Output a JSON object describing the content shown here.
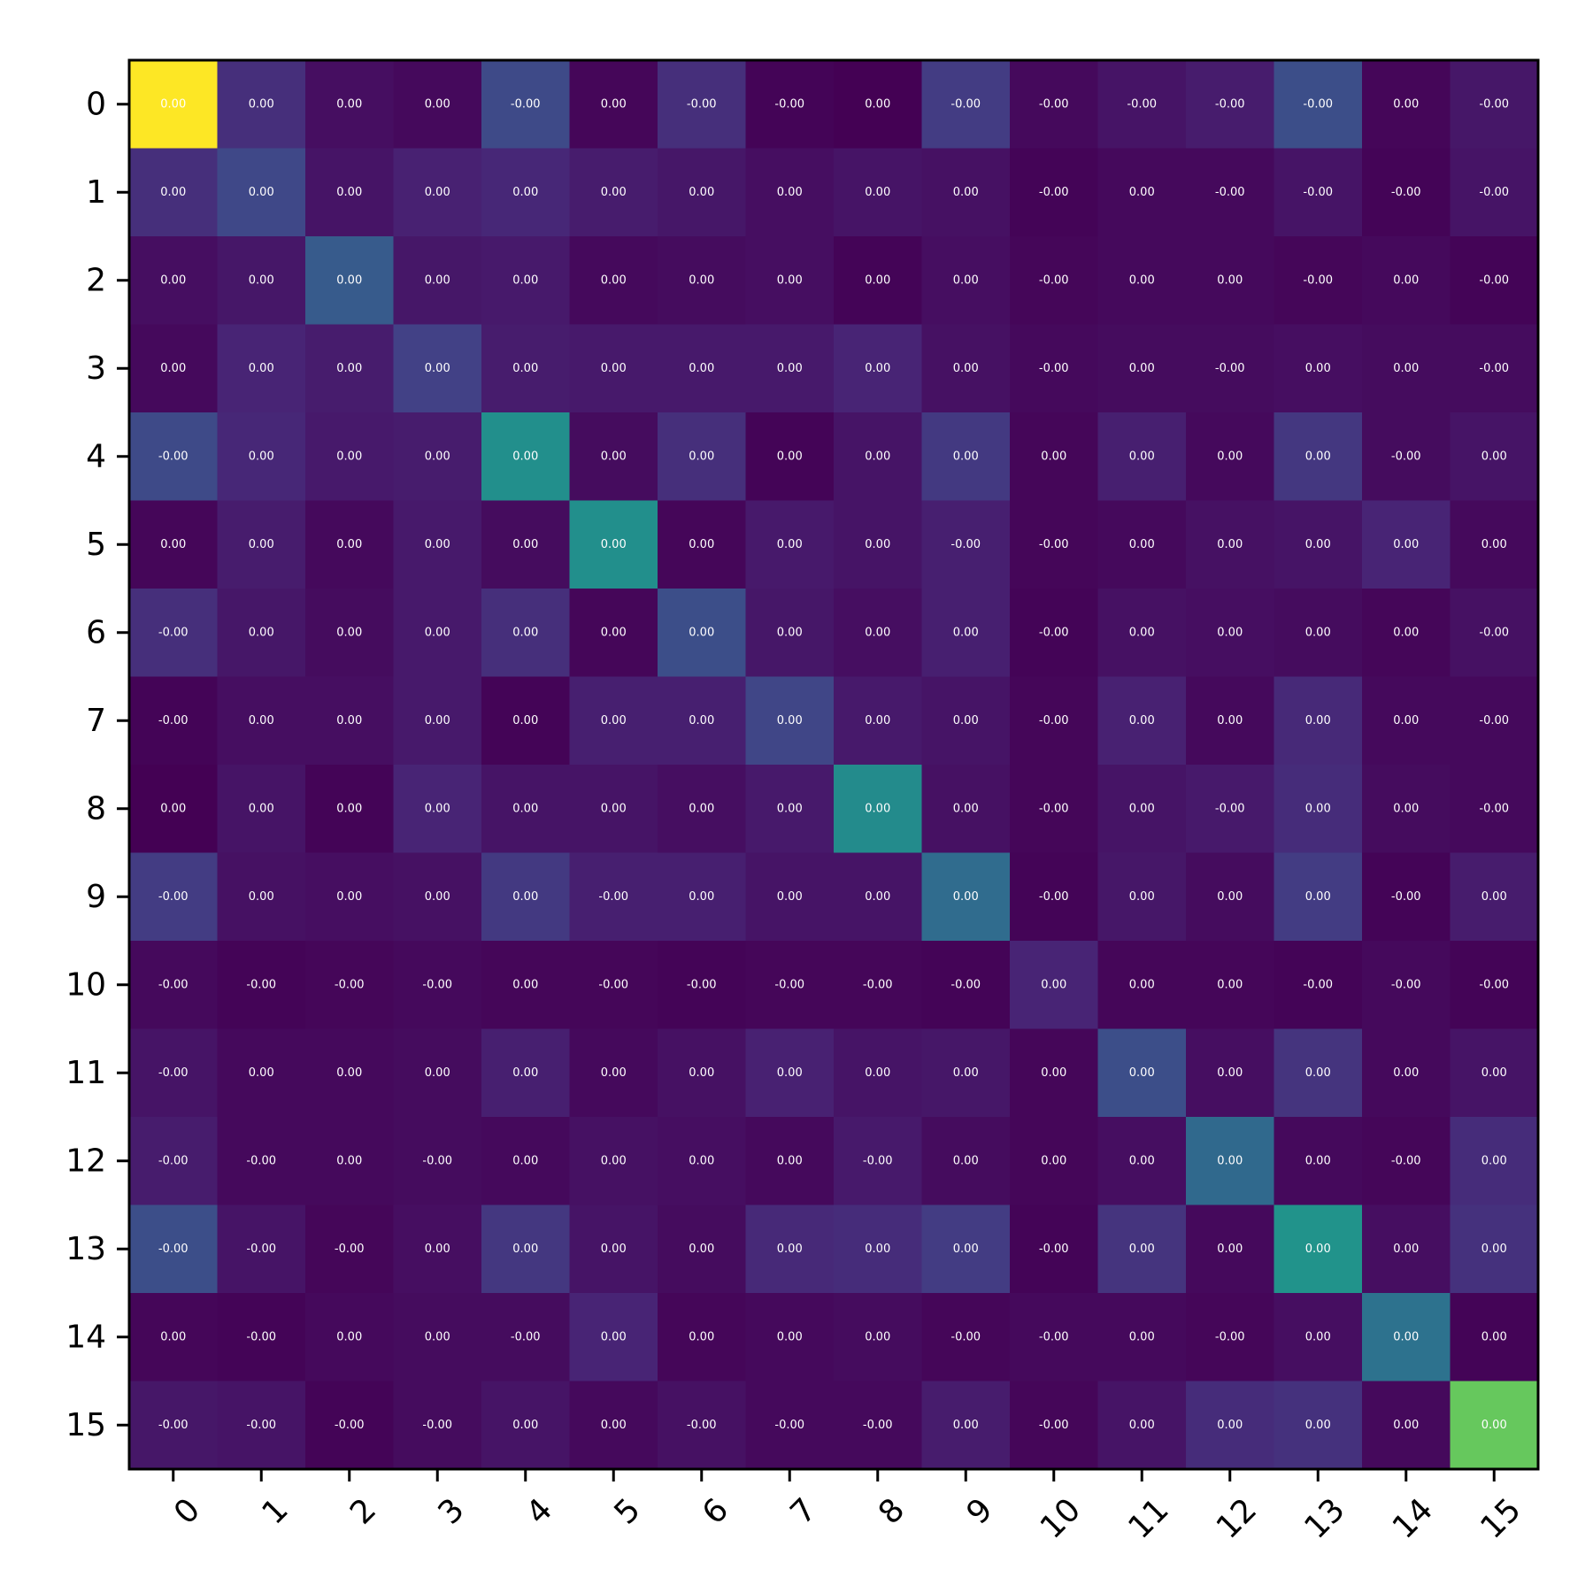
{
  "chart_data": {
    "type": "heatmap",
    "title": "",
    "xlabel": "",
    "ylabel": "",
    "colormap": "viridis",
    "x_categories": [
      "0",
      "1",
      "2",
      "3",
      "4",
      "5",
      "6",
      "7",
      "8",
      "9",
      "10",
      "11",
      "12",
      "13",
      "14",
      "15"
    ],
    "y_categories": [
      "0",
      "1",
      "2",
      "3",
      "4",
      "5",
      "6",
      "7",
      "8",
      "9",
      "10",
      "11",
      "12",
      "13",
      "14",
      "15"
    ],
    "intensity": [
      [
        1.0,
        0.17,
        0.05,
        0.03,
        0.28,
        0.02,
        0.17,
        0.01,
        0.0,
        0.22,
        0.03,
        0.07,
        0.1,
        0.3,
        0.02,
        0.08
      ],
      [
        0.17,
        0.27,
        0.07,
        0.12,
        0.14,
        0.1,
        0.08,
        0.05,
        0.07,
        0.06,
        0.01,
        0.03,
        0.03,
        0.07,
        0.01,
        0.07
      ],
      [
        0.05,
        0.08,
        0.36,
        0.08,
        0.09,
        0.03,
        0.04,
        0.05,
        0.01,
        0.05,
        0.02,
        0.03,
        0.03,
        0.02,
        0.03,
        0.01
      ],
      [
        0.03,
        0.13,
        0.1,
        0.24,
        0.1,
        0.09,
        0.09,
        0.09,
        0.13,
        0.06,
        0.03,
        0.04,
        0.04,
        0.05,
        0.04,
        0.04
      ],
      [
        0.28,
        0.14,
        0.09,
        0.1,
        0.62,
        0.04,
        0.17,
        0.01,
        0.07,
        0.21,
        0.02,
        0.11,
        0.03,
        0.2,
        0.04,
        0.07
      ],
      [
        0.02,
        0.1,
        0.03,
        0.09,
        0.04,
        0.62,
        0.02,
        0.09,
        0.07,
        0.11,
        0.02,
        0.03,
        0.06,
        0.07,
        0.13,
        0.03
      ],
      [
        0.17,
        0.08,
        0.04,
        0.09,
        0.17,
        0.02,
        0.3,
        0.08,
        0.05,
        0.11,
        0.01,
        0.06,
        0.05,
        0.04,
        0.02,
        0.06
      ],
      [
        0.01,
        0.05,
        0.05,
        0.09,
        0.01,
        0.11,
        0.11,
        0.26,
        0.09,
        0.07,
        0.02,
        0.12,
        0.03,
        0.15,
        0.03,
        0.03
      ],
      [
        0.0,
        0.07,
        0.01,
        0.13,
        0.07,
        0.07,
        0.05,
        0.09,
        0.6,
        0.06,
        0.02,
        0.07,
        0.09,
        0.16,
        0.04,
        0.03
      ],
      [
        0.22,
        0.06,
        0.05,
        0.06,
        0.21,
        0.11,
        0.11,
        0.07,
        0.07,
        0.44,
        0.01,
        0.08,
        0.04,
        0.22,
        0.01,
        0.1
      ],
      [
        0.03,
        0.01,
        0.02,
        0.03,
        0.02,
        0.02,
        0.01,
        0.02,
        0.02,
        0.01,
        0.13,
        0.02,
        0.02,
        0.01,
        0.03,
        0.01
      ],
      [
        0.07,
        0.03,
        0.03,
        0.04,
        0.11,
        0.03,
        0.06,
        0.12,
        0.07,
        0.08,
        0.02,
        0.3,
        0.05,
        0.19,
        0.03,
        0.07
      ],
      [
        0.1,
        0.03,
        0.03,
        0.04,
        0.03,
        0.06,
        0.05,
        0.03,
        0.09,
        0.04,
        0.02,
        0.05,
        0.43,
        0.03,
        0.02,
        0.16
      ],
      [
        0.3,
        0.07,
        0.02,
        0.05,
        0.2,
        0.07,
        0.04,
        0.15,
        0.16,
        0.22,
        0.01,
        0.19,
        0.03,
        0.64,
        0.05,
        0.18
      ],
      [
        0.02,
        0.01,
        0.03,
        0.04,
        0.04,
        0.13,
        0.02,
        0.03,
        0.04,
        0.02,
        0.03,
        0.03,
        0.02,
        0.05,
        0.47,
        0.01
      ],
      [
        0.08,
        0.07,
        0.01,
        0.04,
        0.07,
        0.03,
        0.06,
        0.03,
        0.03,
        0.1,
        0.02,
        0.07,
        0.16,
        0.18,
        0.03,
        0.85
      ]
    ],
    "labels": [
      [
        "0.00",
        "0.00",
        "0.00",
        "0.00",
        "-0.00",
        "0.00",
        "-0.00",
        "-0.00",
        "0.00",
        "-0.00",
        "-0.00",
        "-0.00",
        "-0.00",
        "-0.00",
        "0.00",
        "-0.00"
      ],
      [
        "0.00",
        "0.00",
        "0.00",
        "0.00",
        "0.00",
        "0.00",
        "0.00",
        "0.00",
        "0.00",
        "0.00",
        "-0.00",
        "0.00",
        "-0.00",
        "-0.00",
        "-0.00",
        "-0.00"
      ],
      [
        "0.00",
        "0.00",
        "0.00",
        "0.00",
        "0.00",
        "0.00",
        "0.00",
        "0.00",
        "0.00",
        "0.00",
        "-0.00",
        "0.00",
        "0.00",
        "-0.00",
        "0.00",
        "-0.00"
      ],
      [
        "0.00",
        "0.00",
        "0.00",
        "0.00",
        "0.00",
        "0.00",
        "0.00",
        "0.00",
        "0.00",
        "0.00",
        "-0.00",
        "0.00",
        "-0.00",
        "0.00",
        "0.00",
        "-0.00"
      ],
      [
        "-0.00",
        "0.00",
        "0.00",
        "0.00",
        "0.00",
        "0.00",
        "0.00",
        "0.00",
        "0.00",
        "0.00",
        "0.00",
        "0.00",
        "0.00",
        "0.00",
        "-0.00",
        "0.00"
      ],
      [
        "0.00",
        "0.00",
        "0.00",
        "0.00",
        "0.00",
        "0.00",
        "0.00",
        "0.00",
        "0.00",
        "-0.00",
        "-0.00",
        "0.00",
        "0.00",
        "0.00",
        "0.00",
        "0.00"
      ],
      [
        "-0.00",
        "0.00",
        "0.00",
        "0.00",
        "0.00",
        "0.00",
        "0.00",
        "0.00",
        "0.00",
        "0.00",
        "-0.00",
        "0.00",
        "0.00",
        "0.00",
        "0.00",
        "-0.00"
      ],
      [
        "-0.00",
        "0.00",
        "0.00",
        "0.00",
        "0.00",
        "0.00",
        "0.00",
        "0.00",
        "0.00",
        "0.00",
        "-0.00",
        "0.00",
        "0.00",
        "0.00",
        "0.00",
        "-0.00"
      ],
      [
        "0.00",
        "0.00",
        "0.00",
        "0.00",
        "0.00",
        "0.00",
        "0.00",
        "0.00",
        "0.00",
        "0.00",
        "-0.00",
        "0.00",
        "-0.00",
        "0.00",
        "0.00",
        "-0.00"
      ],
      [
        "-0.00",
        "0.00",
        "0.00",
        "0.00",
        "0.00",
        "-0.00",
        "0.00",
        "0.00",
        "0.00",
        "0.00",
        "-0.00",
        "0.00",
        "0.00",
        "0.00",
        "-0.00",
        "0.00"
      ],
      [
        "-0.00",
        "-0.00",
        "-0.00",
        "-0.00",
        "0.00",
        "-0.00",
        "-0.00",
        "-0.00",
        "-0.00",
        "-0.00",
        "0.00",
        "0.00",
        "0.00",
        "-0.00",
        "-0.00",
        "-0.00"
      ],
      [
        "-0.00",
        "0.00",
        "0.00",
        "0.00",
        "0.00",
        "0.00",
        "0.00",
        "0.00",
        "0.00",
        "0.00",
        "0.00",
        "0.00",
        "0.00",
        "0.00",
        "0.00",
        "0.00"
      ],
      [
        "-0.00",
        "-0.00",
        "0.00",
        "-0.00",
        "0.00",
        "0.00",
        "0.00",
        "0.00",
        "-0.00",
        "0.00",
        "0.00",
        "0.00",
        "0.00",
        "0.00",
        "-0.00",
        "0.00"
      ],
      [
        "-0.00",
        "-0.00",
        "-0.00",
        "0.00",
        "0.00",
        "0.00",
        "0.00",
        "0.00",
        "0.00",
        "0.00",
        "-0.00",
        "0.00",
        "0.00",
        "0.00",
        "0.00",
        "0.00"
      ],
      [
        "0.00",
        "-0.00",
        "0.00",
        "0.00",
        "-0.00",
        "0.00",
        "0.00",
        "0.00",
        "0.00",
        "-0.00",
        "-0.00",
        "0.00",
        "-0.00",
        "0.00",
        "0.00",
        "0.00"
      ],
      [
        "-0.00",
        "-0.00",
        "-0.00",
        "-0.00",
        "0.00",
        "0.00",
        "-0.00",
        "-0.00",
        "-0.00",
        "0.00",
        "-0.00",
        "0.00",
        "0.00",
        "0.00",
        "0.00",
        "0.00"
      ]
    ],
    "grid": false,
    "legend": "none"
  }
}
